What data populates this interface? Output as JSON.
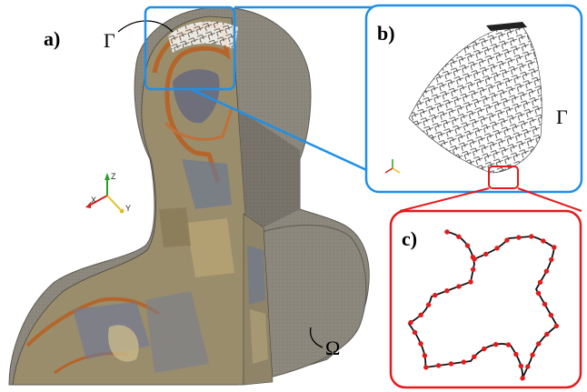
{
  "figure": {
    "panel_a": {
      "label": "a)",
      "surface_symbol": "Γ",
      "domain_symbol": "Ω"
    },
    "panel_b": {
      "label": "b)",
      "surface_symbol": "Γ"
    },
    "panel_c": {
      "label": "c)"
    },
    "axes": {
      "z": "Z",
      "x": "X",
      "y": "Y"
    }
  },
  "colors": {
    "callout_blue": "#1e90e8",
    "callout_red": "#e41a1c",
    "voxel_gray": "#807c74",
    "tissue_tan": "#a89a73",
    "tissue_orange": "#b5652a",
    "tissue_blue": "#6c7890",
    "mesh_point": "#e41a1c"
  }
}
